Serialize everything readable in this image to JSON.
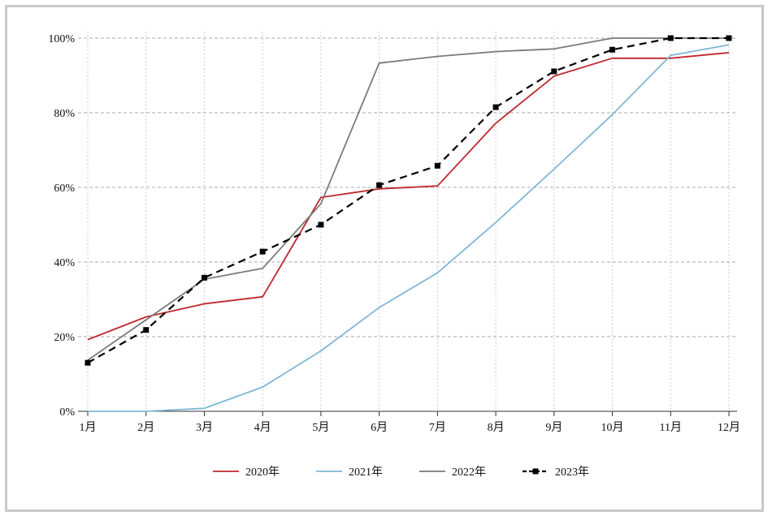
{
  "chart_data": {
    "type": "line",
    "title": "",
    "xlabel": "",
    "ylabel": "",
    "categories": [
      "1月",
      "2月",
      "3月",
      "4月",
      "5月",
      "6月",
      "7月",
      "8月",
      "9月",
      "10月",
      "11月",
      "12月"
    ],
    "ylim": [
      0,
      100
    ],
    "yticks": [
      0,
      20,
      40,
      60,
      80,
      100
    ],
    "ytick_labels": [
      "0%",
      "20%",
      "40%",
      "60%",
      "80%",
      "100%"
    ],
    "grid": {
      "horizontal": "dashed",
      "vertical": "dotted"
    },
    "legend_position": "bottom-center",
    "series": [
      {
        "name": "2020年",
        "color": "#c0272d",
        "dashed": false,
        "markers": false,
        "values": [
          19.2,
          25.3,
          28.8,
          30.7,
          57.3,
          59.6,
          60.4,
          77.2,
          89.8,
          94.6,
          94.6,
          96.1
        ]
      },
      {
        "name": "2021年",
        "color": "#7fb8d6",
        "dashed": false,
        "markers": false,
        "values": [
          0,
          0,
          0.8,
          6.5,
          16.2,
          27.8,
          37.1,
          50.6,
          64.9,
          79.5,
          95.4,
          98.2
        ]
      },
      {
        "name": "2022年",
        "color": "#7a7a7a",
        "dashed": false,
        "markers": false,
        "values": [
          13.7,
          24.5,
          35.4,
          38.3,
          55.6,
          93.3,
          95.1,
          96.4,
          97.1,
          100,
          100,
          100
        ]
      },
      {
        "name": "2023年",
        "color": "#000000",
        "dashed": true,
        "markers": true,
        "values": [
          13.0,
          21.8,
          35.8,
          42.8,
          50.0,
          60.6,
          65.8,
          81.5,
          91.1,
          96.9,
          100,
          100
        ]
      }
    ]
  }
}
